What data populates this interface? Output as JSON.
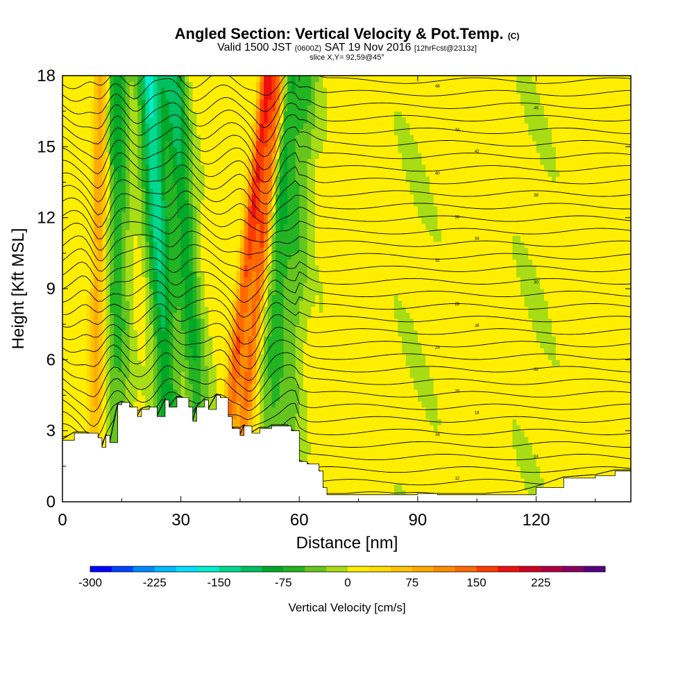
{
  "title": {
    "line1_main": "Angled Section: Vertical Velocity & Pot.Temp.",
    "line1_unit": "(C)",
    "line2_pre": "Valid 1500 JST",
    "line2_utc": "(0600Z)",
    "line2_date": "SAT 19 Nov 2016",
    "line2_fcst": "[12hrFcst@2313z]",
    "line3": "slice X,Y= 92,59@45°"
  },
  "chart_data": {
    "type": "heatmap",
    "xlabel": "Distance [nm]",
    "ylabel": "Height [Kft MSL]",
    "xlim": [
      0,
      144
    ],
    "ylim": [
      0,
      18
    ],
    "xticks": [
      0,
      30,
      60,
      90,
      120
    ],
    "yticks": [
      0,
      3,
      6,
      9,
      12,
      15,
      18
    ],
    "colorbar": {
      "label": "Vertical Velocity [cm/s]",
      "ticks": [
        -300,
        -225,
        -150,
        -75,
        0,
        75,
        150,
        225
      ],
      "levels": [
        -300,
        -275,
        -250,
        -225,
        -200,
        -175,
        -150,
        -125,
        -100,
        -75,
        -50,
        -25,
        0,
        25,
        50,
        75,
        100,
        125,
        150,
        175,
        200,
        225,
        250,
        275
      ],
      "colors": [
        "#0000ff",
        "#0044ff",
        "#0088ff",
        "#00bbff",
        "#00dfff",
        "#00f0d0",
        "#00d890",
        "#00c060",
        "#00a828",
        "#22b422",
        "#66c41e",
        "#a8dc14",
        "#ffee00",
        "#ffdd00",
        "#ffc400",
        "#ffaa00",
        "#ff8c00",
        "#ff6a00",
        "#ff3c00",
        "#ee1010",
        "#d00020",
        "#b00040",
        "#880060",
        "#550080"
      ]
    },
    "terrain_kft": {
      "x": [
        0,
        3,
        6,
        9,
        10,
        11,
        12,
        14,
        15,
        17,
        19,
        20,
        22,
        24,
        26,
        27,
        29,
        30,
        32,
        33,
        34,
        36,
        37,
        39,
        40,
        42,
        43,
        45,
        46,
        48,
        50,
        52,
        53,
        55,
        57,
        58,
        60,
        62,
        65,
        66,
        67,
        70,
        75,
        80,
        90,
        95,
        100,
        105,
        113,
        120,
        127,
        135,
        140,
        144
      ],
      "y": [
        2.6,
        2.9,
        2.9,
        2.7,
        2.3,
        2.8,
        2.5,
        4.1,
        4.2,
        4.0,
        3.6,
        3.9,
        4.0,
        3.6,
        4.3,
        4.0,
        4.4,
        4.4,
        4.0,
        3.4,
        4.0,
        4.3,
        3.9,
        4.5,
        4.4,
        3.6,
        3.1,
        2.8,
        3.2,
        2.9,
        3.1,
        3.1,
        3.2,
        3.2,
        3.2,
        3.0,
        1.7,
        1.6,
        1.3,
        0.6,
        0.3,
        0.3,
        0.3,
        0.3,
        0.35,
        0.3,
        0.3,
        0.3,
        0.3,
        0.6,
        1.0,
        1.1,
        1.3,
        1.3
      ]
    },
    "updraft_bands_cm_s": [
      {
        "x_base": 8,
        "x_top": 10,
        "peak": 100
      },
      {
        "x_base": 40,
        "x_top": 52,
        "peak": 175
      },
      {
        "x_base": 44,
        "x_top": 55,
        "peak": 160
      }
    ],
    "downdraft_bands_cm_s": [
      {
        "x_base": 14,
        "x_top": 14,
        "peak": -100
      },
      {
        "x_base": 28,
        "x_top": 22,
        "peak": -175
      },
      {
        "x_base": 36,
        "x_top": 28,
        "peak": -125
      },
      {
        "x_base": 52,
        "x_top": 57,
        "peak": -100
      },
      {
        "x_base": 57,
        "x_top": 62,
        "peak": -60
      }
    ],
    "contour_labels": [
      "12",
      "14",
      "16",
      "18",
      "20",
      "22",
      "24",
      "26",
      "28",
      "30",
      "32",
      "34",
      "36",
      "38",
      "40",
      "42",
      "44",
      "46",
      "48"
    ]
  }
}
